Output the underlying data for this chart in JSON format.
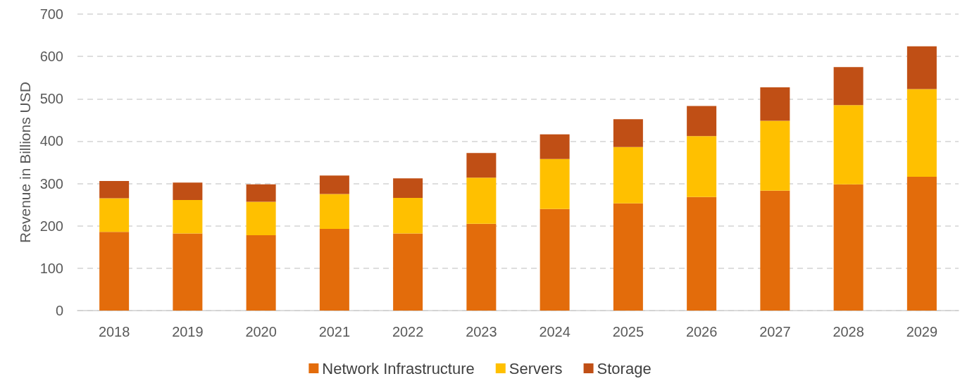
{
  "chart_data": {
    "type": "bar",
    "stacked": true,
    "ylabel": "Revenue in Billions USD",
    "categories": [
      "2018",
      "2019",
      "2020",
      "2021",
      "2022",
      "2023",
      "2024",
      "2025",
      "2026",
      "2027",
      "2028",
      "2029"
    ],
    "series": [
      {
        "name": "Network Infrastructure",
        "color": "#e36c0b",
        "values": [
          186,
          182,
          178,
          193,
          182,
          205,
          240,
          253,
          268,
          283,
          298,
          316
        ]
      },
      {
        "name": "Servers",
        "color": "#ffc000",
        "values": [
          79,
          79,
          79,
          82,
          84,
          109,
          118,
          133,
          144,
          165,
          187,
          207
        ]
      },
      {
        "name": "Storage",
        "color": "#c04f15",
        "values": [
          41,
          41,
          41,
          44,
          46,
          58,
          58,
          66,
          71,
          79,
          90,
          101
        ]
      }
    ],
    "ylim": [
      0,
      700
    ],
    "yticks": [
      0,
      100,
      200,
      300,
      400,
      500,
      600,
      700
    ],
    "grid": "y",
    "legend": "bottom"
  }
}
